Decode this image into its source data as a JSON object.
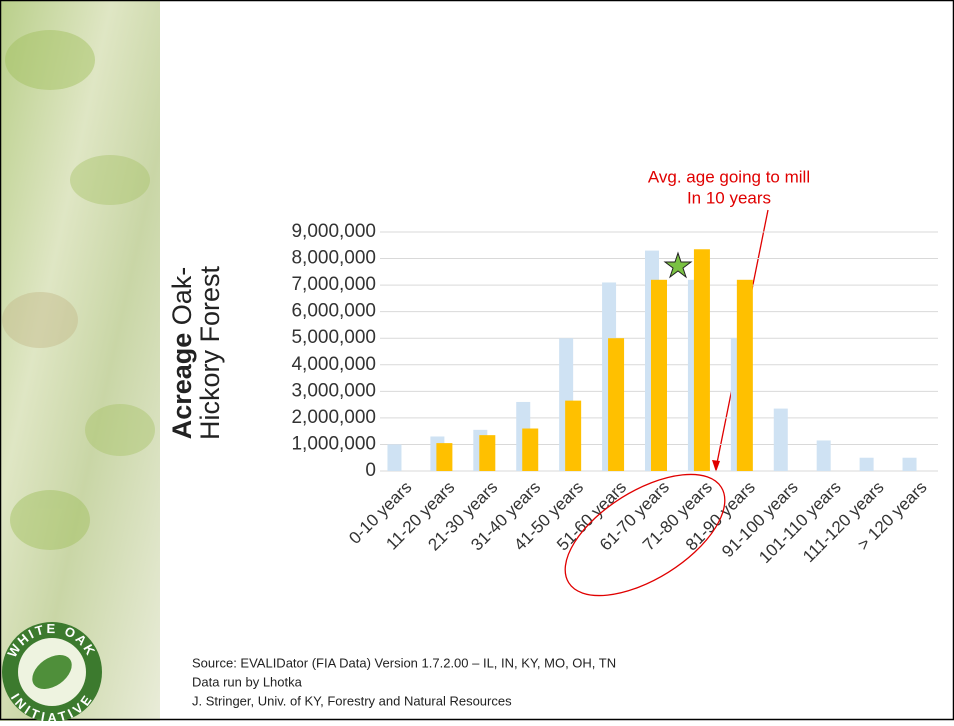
{
  "chart_data": {
    "type": "bar",
    "y_label": {
      "bold": "Acreage",
      "line1": "Oak-",
      "line2": "Hickory Forest"
    },
    "categories": [
      "0-10 years",
      "11-20 years",
      "21-30 years",
      "31-40 years",
      "41-50 years",
      "51-60 years",
      "61-70 years",
      "71-80 years",
      "81-90 years",
      "91-100 years",
      "101-110 years",
      "111-120 years",
      "> 120 years"
    ],
    "series": [
      {
        "color": "#cfe2f3",
        "values": [
          1000000,
          1300000,
          1550000,
          2600000,
          5000000,
          7100000,
          8300000,
          7200000,
          5000000,
          2350000,
          1150000,
          500000,
          500000
        ]
      },
      {
        "color": "#ffc000",
        "values": [
          null,
          1050000,
          1350000,
          1600000,
          2650000,
          5000000,
          7200000,
          8350000,
          7200000,
          null,
          null,
          null,
          null
        ]
      }
    ],
    "ylim": [
      0,
      9000000
    ],
    "yticks": [
      0,
      {
        "value": 1000000,
        "label": "1,000,000"
      },
      {
        "value": 2000000,
        "label": "2,000,000"
      },
      {
        "value": 3000000,
        "label": "3,000,000"
      },
      {
        "value": 4000000,
        "label": "4,000,000"
      },
      {
        "value": 5000000,
        "label": "5,000,000"
      },
      {
        "value": 6000000,
        "label": "6,000,000"
      },
      {
        "value": 7000000,
        "label": "7,000,000"
      },
      {
        "value": 8000000,
        "label": "8,000,000"
      },
      {
        "value": 9000000,
        "label": "9,000,000"
      }
    ],
    "grid": true,
    "annotation": [
      "Avg. age going to mill",
      "In 10 years"
    ]
  },
  "source": [
    "Source: EVALIDator (FIA Data) Version 1.7.2.00 – IL, IN, KY, MO, OH, TN",
    "Data run by Lhotka",
    "J. Stringer, Univ. of KY, Forestry and Natural Resources"
  ],
  "logo": {
    "top": "WHITE OAK",
    "bottom": "INITIATIVE"
  }
}
